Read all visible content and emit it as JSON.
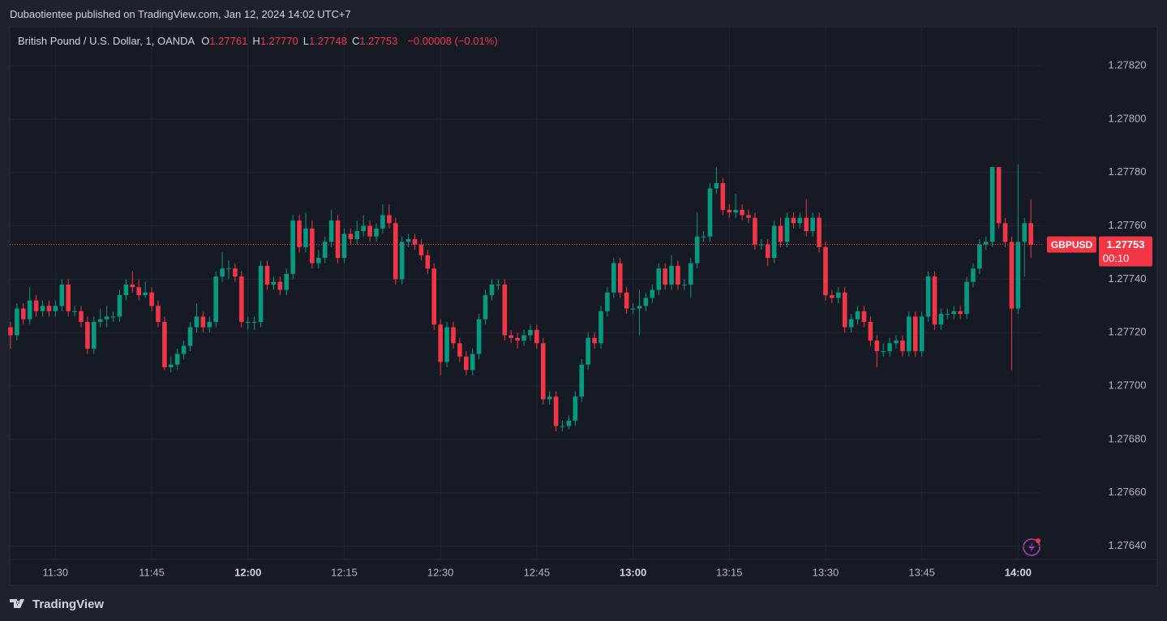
{
  "header": {
    "title": "Dubaotientee published on TradingView.com, Jan 12, 2024 14:02 UTC+7"
  },
  "chart_data": {
    "type": "candlestick",
    "legend": {
      "symbol": "British Pound / U.S. Dollar, 1, OANDA",
      "fields": [
        {
          "key": "O",
          "value": 1.27761,
          "label": "1.27761"
        },
        {
          "key": "H",
          "value": 1.2777,
          "label": "1.27770"
        },
        {
          "key": "L",
          "value": 1.27748,
          "label": "1.27748"
        },
        {
          "key": "C",
          "value": 1.27753,
          "label": "1.27753"
        }
      ],
      "change": "−0.00008 (−0.01%)"
    },
    "x": [
      "11:23",
      "11:24",
      "11:25",
      "11:26",
      "11:27",
      "11:28",
      "11:29",
      "11:30",
      "11:31",
      "11:32",
      "11:33",
      "11:34",
      "11:35",
      "11:36",
      "11:37",
      "11:38",
      "11:39",
      "11:40",
      "11:41",
      "11:42",
      "11:43",
      "11:44",
      "11:45",
      "11:46",
      "11:47",
      "11:48",
      "11:49",
      "11:50",
      "11:51",
      "11:52",
      "11:53",
      "11:54",
      "11:55",
      "11:56",
      "11:57",
      "11:58",
      "11:59",
      "12:00",
      "12:01",
      "12:02",
      "12:03",
      "12:04",
      "12:05",
      "12:06",
      "12:07",
      "12:08",
      "12:09",
      "12:10",
      "12:11",
      "12:12",
      "12:13",
      "12:14",
      "12:15",
      "12:16",
      "12:17",
      "12:18",
      "12:19",
      "12:20",
      "12:21",
      "12:22",
      "12:23",
      "12:24",
      "12:25",
      "12:26",
      "12:27",
      "12:28",
      "12:29",
      "12:30",
      "12:31",
      "12:32",
      "12:33",
      "12:34",
      "12:35",
      "12:36",
      "12:37",
      "12:38",
      "12:39",
      "12:40",
      "12:41",
      "12:42",
      "12:43",
      "12:44",
      "12:45",
      "12:46",
      "12:47",
      "12:48",
      "12:49",
      "12:50",
      "12:51",
      "12:52",
      "12:53",
      "12:54",
      "12:55",
      "12:56",
      "12:57",
      "12:58",
      "12:59",
      "13:00",
      "13:01",
      "13:02",
      "13:03",
      "13:04",
      "13:05",
      "13:06",
      "13:07",
      "13:08",
      "13:09",
      "13:10",
      "13:11",
      "13:12",
      "13:13",
      "13:14",
      "13:15",
      "13:16",
      "13:17",
      "13:18",
      "13:19",
      "13:20",
      "13:21",
      "13:22",
      "13:23",
      "13:24",
      "13:25",
      "13:26",
      "13:27",
      "13:28",
      "13:29",
      "13:30",
      "13:31",
      "13:32",
      "13:33",
      "13:34",
      "13:35",
      "13:36",
      "13:37",
      "13:38",
      "13:39",
      "13:40",
      "13:41",
      "13:42",
      "13:43",
      "13:44",
      "13:45",
      "13:46",
      "13:47",
      "13:48",
      "13:49",
      "13:50",
      "13:51",
      "13:52",
      "13:53",
      "13:54",
      "13:55",
      "13:56",
      "13:57",
      "13:58",
      "13:59",
      "14:00",
      "14:01",
      "14:02"
    ],
    "open": [
      1.27722,
      1.27719,
      1.27729,
      1.27725,
      1.27732,
      1.27728,
      1.2773,
      1.27728,
      1.2773,
      1.27738,
      1.27728,
      1.27728,
      1.27724,
      1.27714,
      1.27724,
      1.27725,
      1.27726,
      1.27726,
      1.27734,
      1.27738,
      1.27737,
      1.27734,
      1.27735,
      1.2773,
      1.27724,
      1.27707,
      1.27708,
      1.27712,
      1.27715,
      1.27722,
      1.27726,
      1.27722,
      1.27724,
      1.27741,
      1.27744,
      1.27744,
      1.27741,
      1.27724,
      1.27724,
      1.27724,
      1.27745,
      1.27738,
      1.27739,
      1.27736,
      1.27742,
      1.27762,
      1.27752,
      1.27759,
      1.27746,
      1.27748,
      1.27754,
      1.27762,
      1.27748,
      1.27757,
      1.27755,
      1.27758,
      1.2776,
      1.27756,
      1.27759,
      1.27764,
      1.27761,
      1.2774,
      1.27754,
      1.27755,
      1.27753,
      1.27749,
      1.27744,
      1.27723,
      1.27709,
      1.27722,
      1.27716,
      1.27711,
      1.27706,
      1.27712,
      1.27725,
      1.27734,
      1.27738,
      1.27738,
      1.27719,
      1.27718,
      1.27717,
      1.27719,
      1.27721,
      1.27716,
      1.27695,
      1.27696,
      1.27685,
      1.27685,
      1.27687,
      1.27696,
      1.27708,
      1.27718,
      1.27716,
      1.27728,
      1.27735,
      1.27746,
      1.27735,
      1.27729,
      1.27729,
      1.2773,
      1.27733,
      1.27736,
      1.27744,
      1.27738,
      1.27745,
      1.27738,
      1.27738,
      1.27746,
      1.27756,
      1.27756,
      1.27774,
      1.27776,
      1.27766,
      1.27765,
      1.27766,
      1.27764,
      1.27763,
      1.27753,
      1.27753,
      1.27748,
      1.2776,
      1.27754,
      1.27763,
      1.27761,
      1.27763,
      1.27758,
      1.27763,
      1.27752,
      1.27734,
      1.27733,
      1.27735,
      1.27722,
      1.27725,
      1.27728,
      1.27724,
      1.27717,
      1.27713,
      1.27713,
      1.27716,
      1.27717,
      1.27713,
      1.27726,
      1.27713,
      1.27726,
      1.27741,
      1.27723,
      1.27727,
      1.27727,
      1.27728,
      1.27727,
      1.27739,
      1.27744,
      1.27753,
      1.27754,
      1.27782,
      1.27761,
      1.27754,
      1.27729,
      1.27754,
      1.27761
    ],
    "high": [
      1.27724,
      1.27731,
      1.27731,
      1.27737,
      1.27734,
      1.27732,
      1.27732,
      1.27732,
      1.2774,
      1.2774,
      1.2773,
      1.2773,
      1.27726,
      1.27726,
      1.27729,
      1.2773,
      1.27728,
      1.27736,
      1.2774,
      1.27743,
      1.2774,
      1.27739,
      1.27737,
      1.27732,
      1.27726,
      1.27711,
      1.27714,
      1.27717,
      1.27724,
      1.27731,
      1.27728,
      1.27726,
      1.27743,
      1.2775,
      1.27747,
      1.27746,
      1.27743,
      1.27726,
      1.27726,
      1.27747,
      1.27747,
      1.27741,
      1.27741,
      1.27744,
      1.27764,
      1.27764,
      1.27765,
      1.27762,
      1.27751,
      1.27756,
      1.27766,
      1.27764,
      1.27759,
      1.27759,
      1.27762,
      1.27764,
      1.27762,
      1.27761,
      1.27768,
      1.27768,
      1.27763,
      1.27756,
      1.27757,
      1.27757,
      1.27755,
      1.27751,
      1.27746,
      1.27725,
      1.27724,
      1.27724,
      1.27718,
      1.27713,
      1.27714,
      1.27727,
      1.27736,
      1.2774,
      1.2774,
      1.2774,
      1.27721,
      1.2772,
      1.27721,
      1.27723,
      1.27723,
      1.27718,
      1.27698,
      1.27698,
      1.27687,
      1.27689,
      1.27698,
      1.2771,
      1.2772,
      1.2772,
      1.2773,
      1.27737,
      1.27748,
      1.27748,
      1.27737,
      1.27731,
      1.27736,
      1.27735,
      1.27738,
      1.27746,
      1.27746,
      1.27749,
      1.27747,
      1.2774,
      1.27748,
      1.27765,
      1.27758,
      1.27776,
      1.27782,
      1.27778,
      1.27768,
      1.27772,
      1.27768,
      1.27766,
      1.27765,
      1.27755,
      1.27755,
      1.27762,
      1.27763,
      1.27765,
      1.27765,
      1.27765,
      1.2777,
      1.27765,
      1.27765,
      1.27754,
      1.27736,
      1.27737,
      1.27737,
      1.27727,
      1.2773,
      1.2773,
      1.27726,
      1.27719,
      1.27716,
      1.27718,
      1.27719,
      1.27719,
      1.27728,
      1.27728,
      1.27728,
      1.27743,
      1.27743,
      1.27729,
      1.27729,
      1.2773,
      1.2773,
      1.27741,
      1.27746,
      1.27755,
      1.27756,
      1.27782,
      1.27782,
      1.27763,
      1.27756,
      1.27783,
      1.27763,
      1.2777
    ],
    "low": [
      1.27714,
      1.27717,
      1.27723,
      1.27723,
      1.27726,
      1.27726,
      1.27726,
      1.27726,
      1.27728,
      1.27726,
      1.27726,
      1.27722,
      1.27712,
      1.27712,
      1.27722,
      1.27722,
      1.27724,
      1.27724,
      1.27732,
      1.27735,
      1.27732,
      1.27733,
      1.27728,
      1.27722,
      1.27706,
      1.27705,
      1.27706,
      1.2771,
      1.27713,
      1.2772,
      1.2772,
      1.2772,
      1.27722,
      1.27739,
      1.2774,
      1.27739,
      1.27722,
      1.27721,
      1.27721,
      1.27722,
      1.27736,
      1.27736,
      1.27734,
      1.27734,
      1.2774,
      1.2775,
      1.2775,
      1.27744,
      1.27744,
      1.27746,
      1.27752,
      1.27746,
      1.27746,
      1.27753,
      1.27753,
      1.27756,
      1.27754,
      1.27754,
      1.27757,
      1.27759,
      1.27738,
      1.27738,
      1.27752,
      1.27751,
      1.27747,
      1.27742,
      1.27721,
      1.27704,
      1.27707,
      1.27714,
      1.27709,
      1.27704,
      1.27704,
      1.2771,
      1.27723,
      1.27732,
      1.27736,
      1.27717,
      1.27716,
      1.27714,
      1.27715,
      1.27717,
      1.27714,
      1.27693,
      1.27693,
      1.27683,
      1.27683,
      1.27684,
      1.27685,
      1.27694,
      1.27706,
      1.27714,
      1.27714,
      1.27726,
      1.27733,
      1.27733,
      1.27727,
      1.27727,
      1.27719,
      1.27728,
      1.27731,
      1.27734,
      1.27736,
      1.27736,
      1.27736,
      1.27736,
      1.27733,
      1.27744,
      1.27754,
      1.27754,
      1.27772,
      1.27764,
      1.27763,
      1.27763,
      1.27762,
      1.27761,
      1.27751,
      1.27751,
      1.27745,
      1.27746,
      1.27752,
      1.27752,
      1.27759,
      1.27759,
      1.27756,
      1.27756,
      1.2775,
      1.27732,
      1.27731,
      1.27731,
      1.2772,
      1.2772,
      1.27723,
      1.27722,
      1.27715,
      1.27707,
      1.27711,
      1.27711,
      1.27714,
      1.27711,
      1.27711,
      1.27711,
      1.27711,
      1.27724,
      1.27721,
      1.27721,
      1.27725,
      1.27725,
      1.27725,
      1.27725,
      1.27737,
      1.27742,
      1.27751,
      1.27752,
      1.27759,
      1.27752,
      1.27706,
      1.27727,
      1.27741,
      1.27748
    ],
    "close": [
      1.27719,
      1.27729,
      1.27725,
      1.27732,
      1.27728,
      1.2773,
      1.27728,
      1.2773,
      1.27738,
      1.27728,
      1.27728,
      1.27724,
      1.27714,
      1.27724,
      1.27725,
      1.27726,
      1.27726,
      1.27734,
      1.27738,
      1.27737,
      1.27734,
      1.27735,
      1.2773,
      1.27724,
      1.27707,
      1.27708,
      1.27712,
      1.27715,
      1.27722,
      1.27726,
      1.27722,
      1.27724,
      1.27741,
      1.27744,
      1.27744,
      1.27741,
      1.27724,
      1.27724,
      1.27724,
      1.27745,
      1.27738,
      1.27739,
      1.27736,
      1.27742,
      1.27762,
      1.27752,
      1.27759,
      1.27746,
      1.27748,
      1.27754,
      1.27762,
      1.27748,
      1.27757,
      1.27755,
      1.27758,
      1.2776,
      1.27756,
      1.27759,
      1.27764,
      1.27761,
      1.2774,
      1.27754,
      1.27755,
      1.27753,
      1.27749,
      1.27744,
      1.27723,
      1.27709,
      1.27722,
      1.27716,
      1.27711,
      1.27706,
      1.27712,
      1.27725,
      1.27734,
      1.27738,
      1.27738,
      1.27719,
      1.27718,
      1.27717,
      1.27719,
      1.27721,
      1.27716,
      1.27695,
      1.27696,
      1.27685,
      1.27685,
      1.27687,
      1.27696,
      1.27708,
      1.27718,
      1.27716,
      1.27728,
      1.27735,
      1.27746,
      1.27735,
      1.27729,
      1.27729,
      1.2773,
      1.27733,
      1.27736,
      1.27744,
      1.27738,
      1.27745,
      1.27738,
      1.27738,
      1.27746,
      1.27756,
      1.27756,
      1.27774,
      1.27776,
      1.27766,
      1.27765,
      1.27766,
      1.27764,
      1.27763,
      1.27753,
      1.27753,
      1.27748,
      1.2776,
      1.27754,
      1.27763,
      1.27761,
      1.27763,
      1.27758,
      1.27763,
      1.27752,
      1.27734,
      1.27733,
      1.27735,
      1.27722,
      1.27725,
      1.27728,
      1.27724,
      1.27717,
      1.27713,
      1.27713,
      1.27716,
      1.27717,
      1.27713,
      1.27726,
      1.27713,
      1.27726,
      1.27741,
      1.27723,
      1.27727,
      1.27727,
      1.27728,
      1.27727,
      1.27739,
      1.27744,
      1.27753,
      1.27754,
      1.27782,
      1.27761,
      1.27754,
      1.27729,
      1.27754,
      1.27761,
      1.27753
    ],
    "up_color": "#089981",
    "down_color": "#f23645",
    "ylim": [
      1.27635,
      1.27834
    ],
    "yticks": [
      {
        "value": 1.2764,
        "label": "1.27640"
      },
      {
        "value": 1.2766,
        "label": "1.27660"
      },
      {
        "value": 1.2768,
        "label": "1.27680"
      },
      {
        "value": 1.277,
        "label": "1.27700"
      },
      {
        "value": 1.2772,
        "label": "1.27720"
      },
      {
        "value": 1.2774,
        "label": "1.27740"
      },
      {
        "value": 1.2776,
        "label": "1.27760"
      },
      {
        "value": 1.2778,
        "label": "1.27780"
      },
      {
        "value": 1.278,
        "label": "1.27800"
      },
      {
        "value": 1.2782,
        "label": "1.27820"
      }
    ],
    "xticks": [
      "11:30",
      "11:45",
      "12:00",
      "12:15",
      "12:30",
      "12:45",
      "13:00",
      "13:15",
      "13:30",
      "13:45",
      "14:00"
    ],
    "grid": true,
    "price_tag": {
      "symbol": "GBPUSD",
      "price": {
        "value": 1.27753,
        "label": "1.27753"
      },
      "countdown": "00:10"
    }
  },
  "footer": {
    "brand": "TradingView"
  }
}
